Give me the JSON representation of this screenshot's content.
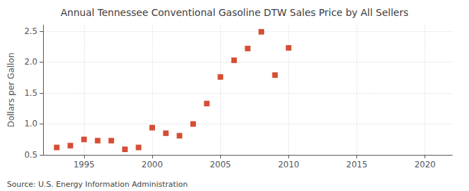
{
  "chart_data": {
    "type": "scatter",
    "title": "Annual Tennessee Conventional Gasoline DTW Sales Price by All Sellers",
    "ylabel": "Dollars per Gallon",
    "annotations": [
      "Source: U.S. Energy Information Administration"
    ],
    "x": [
      1993,
      1994,
      1995,
      1996,
      1997,
      1998,
      1999,
      2000,
      2001,
      2002,
      2003,
      2004,
      2005,
      2006,
      2007,
      2008,
      2009,
      2010
    ],
    "values": [
      0.62,
      0.65,
      0.75,
      0.73,
      0.73,
      0.59,
      0.62,
      0.94,
      0.85,
      0.81,
      1.0,
      1.33,
      1.76,
      2.03,
      2.22,
      2.49,
      1.79,
      2.23
    ],
    "color": "#cc2200",
    "marker": "square",
    "xlim": [
      1992,
      2022
    ],
    "xticks": [
      1995,
      2000,
      2005,
      2010,
      2015,
      2020
    ],
    "ylim": [
      0.5,
      2.6
    ],
    "yticks": [
      0.5,
      {
        "value": 1.0,
        "label": "1.0"
      },
      1.5,
      {
        "value": 2.0,
        "label": "2.0"
      },
      2.5
    ],
    "grid": true
  }
}
